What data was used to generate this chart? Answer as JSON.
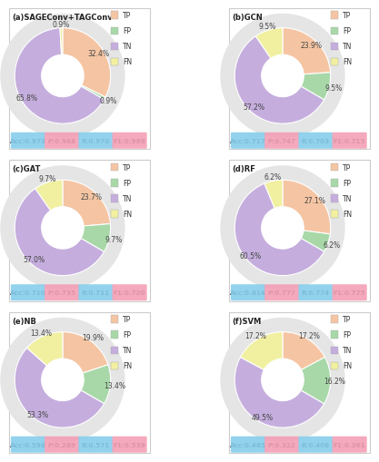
{
  "charts": [
    {
      "title": "(a)SAGEConv+TAGConv",
      "values": [
        32.4,
        0.9,
        65.8,
        0.9
      ],
      "metrics": [
        "Acc:0.973",
        "P:0.968",
        "R:0.970",
        "F1:0.968"
      ]
    },
    {
      "title": "(b)GCN",
      "values": [
        23.9,
        9.5,
        57.2,
        9.5
      ],
      "metrics": [
        "Acc:0.717",
        "P:0.747",
        "R:0.703",
        "F1:0.715"
      ]
    },
    {
      "title": "(c)GAT",
      "values": [
        23.7,
        9.7,
        57.0,
        9.7
      ],
      "metrics": [
        "Acc:0.710",
        "P:0.735",
        "R:0.711",
        "F1:0.720"
      ]
    },
    {
      "title": "(d)RF",
      "values": [
        27.1,
        6.2,
        60.5,
        6.2
      ],
      "metrics": [
        "Acc:0.814",
        "P:0.777",
        "R:0.774",
        "F1:0.775"
      ]
    },
    {
      "title": "(e)NB",
      "values": [
        19.9,
        13.4,
        53.3,
        13.4
      ],
      "metrics": [
        "Acc:0.598",
        "P:0.289",
        "R:0.571",
        "F1:0.539"
      ]
    },
    {
      "title": "(f)SVM",
      "values": [
        17.2,
        16.2,
        49.5,
        17.2
      ],
      "metrics": [
        "Acc:0.485",
        "P:0.322",
        "R:0.408",
        "F1:0.361"
      ]
    }
  ],
  "colors": [
    "#F5C5A3",
    "#A8D8A8",
    "#C5AEDE",
    "#F0F0A0"
  ],
  "legend_labels": [
    "TP",
    "FP",
    "TN",
    "FN"
  ],
  "metric_bg_colors": [
    "#87CEEB",
    "#F4A0B5",
    "#87CEEB",
    "#F4A0B5"
  ],
  "ring_color": "#E5E5E5",
  "figure_bg": "#FFFFFF",
  "border_color": "#CCCCCC"
}
